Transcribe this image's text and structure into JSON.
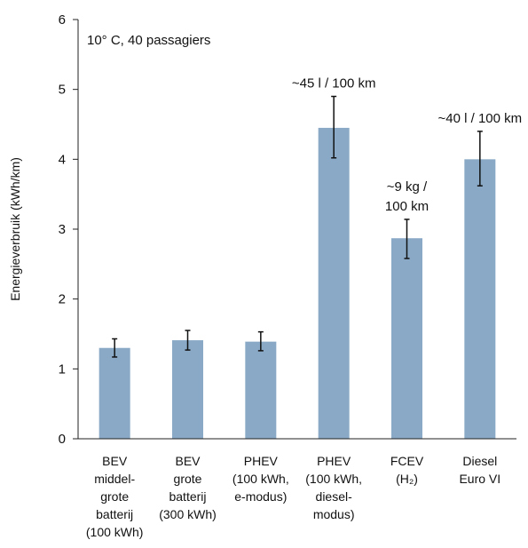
{
  "chart_data": {
    "type": "bar",
    "note": "10° C, 40 passagiers",
    "ylabel": "Energieverbruik (kWh/km)",
    "xlabel": "",
    "ylim": [
      0,
      6
    ],
    "yticks": [
      "0",
      "1",
      "2",
      "3",
      "4",
      "5",
      "6"
    ],
    "bar_color": "#89a9c6",
    "categories": [
      [
        "BEV",
        "middel-",
        "grote",
        "batterij",
        "(100 kWh)"
      ],
      [
        "BEV",
        "grote",
        "batterij",
        "(300 kWh)"
      ],
      [
        "PHEV",
        "(100 kWh,",
        "e-modus)"
      ],
      [
        "PHEV",
        "(100 kWh,",
        "diesel-",
        "modus)"
      ],
      [
        "FCEV",
        "(H₂)"
      ],
      [
        "Diesel",
        "Euro VI"
      ]
    ],
    "values": [
      1.3,
      1.41,
      1.39,
      4.45,
      2.87,
      4.0
    ],
    "error_low": [
      1.17,
      1.27,
      1.26,
      4.02,
      2.58,
      3.62
    ],
    "error_high": [
      1.43,
      1.55,
      1.53,
      4.9,
      3.14,
      4.4
    ],
    "annotations": [
      {
        "category_index": 3,
        "lines": [
          "~45 l / 100 km"
        ]
      },
      {
        "category_index": 4,
        "lines": [
          "~9 kg /",
          "100 km"
        ]
      },
      {
        "category_index": 5,
        "lines": [
          "~40 l / 100 km"
        ]
      }
    ]
  }
}
